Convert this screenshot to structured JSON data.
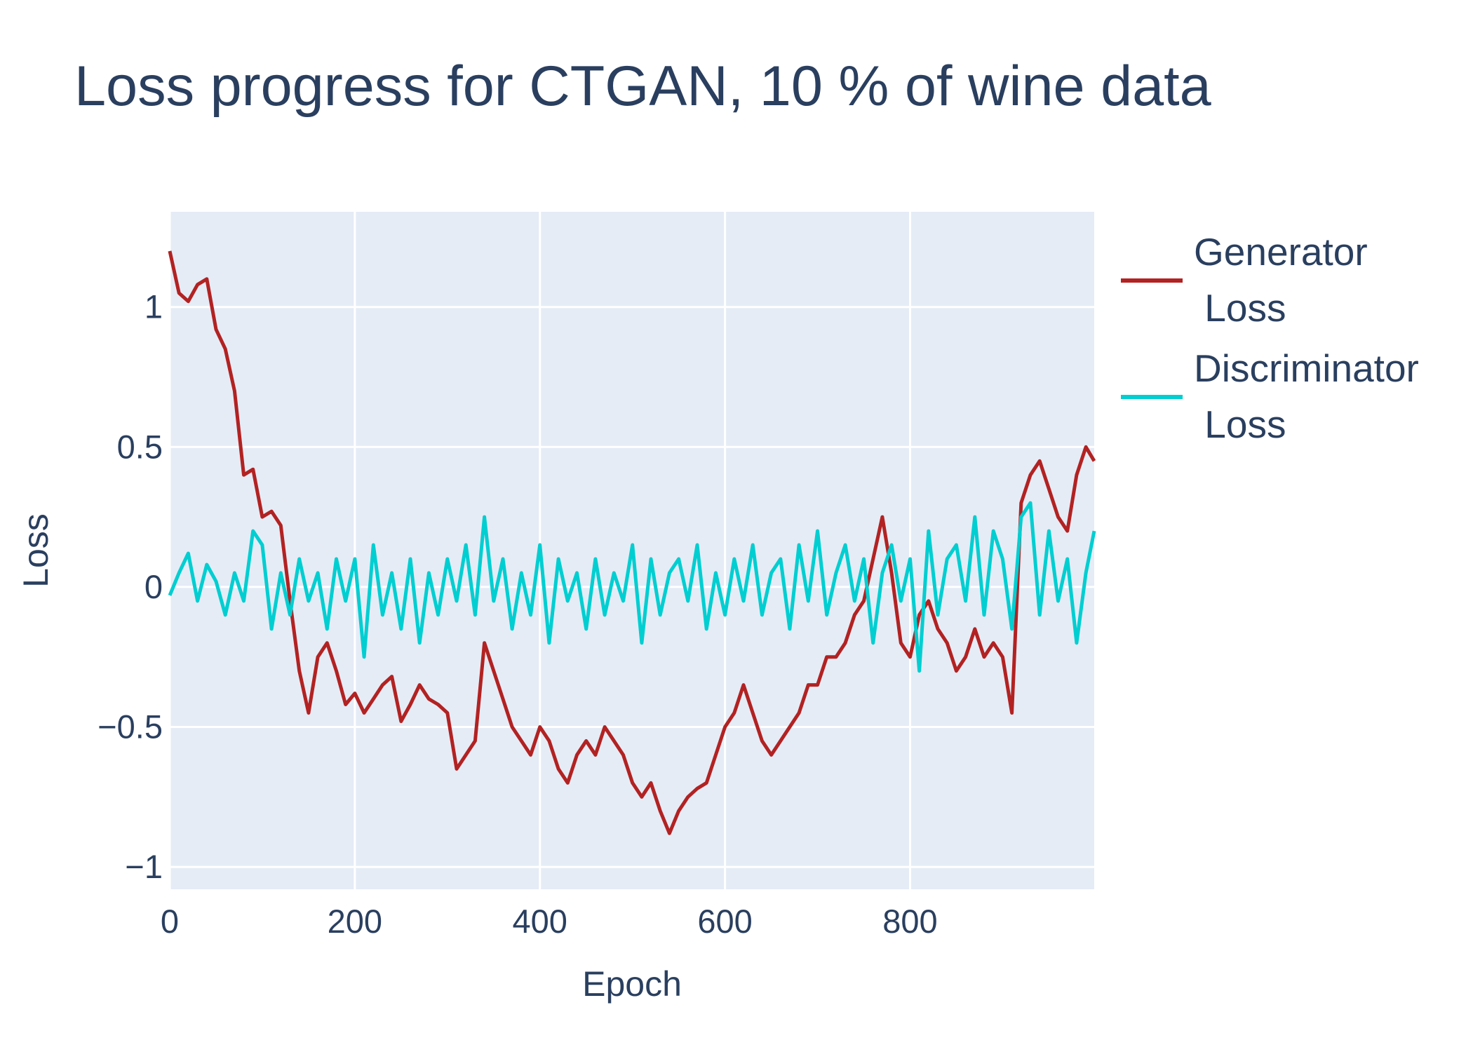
{
  "chart_data": {
    "type": "line",
    "title": "Loss progress for CTGAN, 10 % of wine data",
    "xlabel": "Epoch",
    "ylabel": "Loss",
    "xlim": [
      0,
      999
    ],
    "ylim": [
      -1.08,
      1.34
    ],
    "x_ticks": [
      0,
      200,
      400,
      600,
      800
    ],
    "x_tick_labels": [
      "0",
      "200",
      "400",
      "600",
      "800"
    ],
    "y_ticks": [
      -1,
      -0.5,
      0,
      0.5,
      1
    ],
    "y_tick_labels": [
      "−1",
      "−0.5",
      "0",
      "0.5",
      "1"
    ],
    "grid": true,
    "legend_position": "right",
    "series": [
      {
        "name": "Generator\n Loss",
        "color": "#b22222",
        "x": [
          0,
          10,
          20,
          30,
          40,
          50,
          60,
          70,
          80,
          90,
          100,
          110,
          120,
          130,
          140,
          150,
          160,
          170,
          180,
          190,
          200,
          210,
          220,
          230,
          240,
          250,
          260,
          270,
          280,
          290,
          300,
          310,
          320,
          330,
          340,
          350,
          360,
          370,
          380,
          390,
          400,
          410,
          420,
          430,
          440,
          450,
          460,
          470,
          480,
          490,
          500,
          510,
          520,
          530,
          540,
          550,
          560,
          570,
          580,
          590,
          600,
          610,
          620,
          630,
          640,
          650,
          660,
          670,
          680,
          690,
          700,
          710,
          720,
          730,
          740,
          750,
          760,
          770,
          780,
          790,
          800,
          810,
          820,
          830,
          840,
          850,
          860,
          870,
          880,
          890,
          900,
          910,
          920,
          930,
          940,
          950,
          960,
          970,
          980,
          990,
          999
        ],
        "values": [
          1.2,
          1.05,
          1.02,
          1.08,
          1.1,
          0.92,
          0.85,
          0.7,
          0.4,
          0.42,
          0.25,
          0.27,
          0.22,
          -0.05,
          -0.3,
          -0.45,
          -0.25,
          -0.2,
          -0.3,
          -0.42,
          -0.38,
          -0.45,
          -0.4,
          -0.35,
          -0.32,
          -0.48,
          -0.42,
          -0.35,
          -0.4,
          -0.42,
          -0.45,
          -0.65,
          -0.6,
          -0.55,
          -0.2,
          -0.3,
          -0.4,
          -0.5,
          -0.55,
          -0.6,
          -0.5,
          -0.55,
          -0.65,
          -0.7,
          -0.6,
          -0.55,
          -0.6,
          -0.5,
          -0.55,
          -0.6,
          -0.7,
          -0.75,
          -0.7,
          -0.8,
          -0.88,
          -0.8,
          -0.75,
          -0.72,
          -0.7,
          -0.6,
          -0.5,
          -0.45,
          -0.35,
          -0.45,
          -0.55,
          -0.6,
          -0.55,
          -0.5,
          -0.45,
          -0.35,
          -0.35,
          -0.25,
          -0.25,
          -0.2,
          -0.1,
          -0.05,
          0.1,
          0.25,
          0.05,
          -0.2,
          -0.25,
          -0.1,
          -0.05,
          -0.15,
          -0.2,
          -0.3,
          -0.25,
          -0.15,
          -0.25,
          -0.2,
          -0.25,
          -0.45,
          0.3,
          0.4,
          0.45,
          0.35,
          0.25,
          0.2,
          0.4,
          0.5,
          0.45
        ]
      },
      {
        "name": "Discriminator\n Loss",
        "color": "#00ced1",
        "x": [
          0,
          10,
          20,
          30,
          40,
          50,
          60,
          70,
          80,
          90,
          100,
          110,
          120,
          130,
          140,
          150,
          160,
          170,
          180,
          190,
          200,
          210,
          220,
          230,
          240,
          250,
          260,
          270,
          280,
          290,
          300,
          310,
          320,
          330,
          340,
          350,
          360,
          370,
          380,
          390,
          400,
          410,
          420,
          430,
          440,
          450,
          460,
          470,
          480,
          490,
          500,
          510,
          520,
          530,
          540,
          550,
          560,
          570,
          580,
          590,
          600,
          610,
          620,
          630,
          640,
          650,
          660,
          670,
          680,
          690,
          700,
          710,
          720,
          730,
          740,
          750,
          760,
          770,
          780,
          790,
          800,
          810,
          820,
          830,
          840,
          850,
          860,
          870,
          880,
          890,
          900,
          910,
          920,
          930,
          940,
          950,
          960,
          970,
          980,
          990,
          999
        ],
        "values": [
          -0.03,
          0.05,
          0.12,
          -0.05,
          0.08,
          0.02,
          -0.1,
          0.05,
          -0.05,
          0.2,
          0.15,
          -0.15,
          0.05,
          -0.1,
          0.1,
          -0.05,
          0.05,
          -0.15,
          0.1,
          -0.05,
          0.1,
          -0.25,
          0.15,
          -0.1,
          0.05,
          -0.15,
          0.1,
          -0.2,
          0.05,
          -0.1,
          0.1,
          -0.05,
          0.15,
          -0.1,
          0.25,
          -0.05,
          0.1,
          -0.15,
          0.05,
          -0.1,
          0.15,
          -0.2,
          0.1,
          -0.05,
          0.05,
          -0.15,
          0.1,
          -0.1,
          0.05,
          -0.05,
          0.15,
          -0.2,
          0.1,
          -0.1,
          0.05,
          0.1,
          -0.05,
          0.15,
          -0.15,
          0.05,
          -0.1,
          0.1,
          -0.05,
          0.15,
          -0.1,
          0.05,
          0.1,
          -0.15,
          0.15,
          -0.05,
          0.2,
          -0.1,
          0.05,
          0.15,
          -0.05,
          0.1,
          -0.2,
          0.05,
          0.15,
          -0.05,
          0.1,
          -0.3,
          0.2,
          -0.1,
          0.1,
          0.15,
          -0.05,
          0.25,
          -0.1,
          0.2,
          0.1,
          -0.15,
          0.25,
          0.3,
          -0.1,
          0.2,
          -0.05,
          0.1,
          -0.2,
          0.05,
          0.2
        ]
      }
    ]
  }
}
